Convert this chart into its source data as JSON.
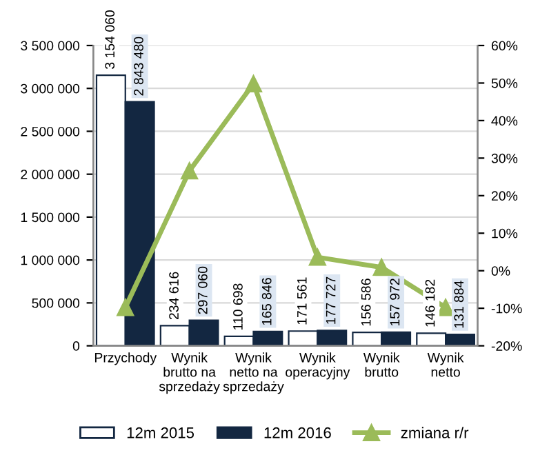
{
  "chart_data": {
    "type": "bar",
    "categories": [
      "Przychody",
      "Wynik\nbrutto na\nsprzedaży",
      "Wynik\nnetto na\nsprzedaży",
      "Wynik\noperacyjny",
      "Wynik\nbrutto",
      "Wynik\nnetto"
    ],
    "series": [
      {
        "name": "12m 2015",
        "color": "#ffffff",
        "values": [
          3154060,
          234616,
          110698,
          171561,
          156586,
          146182
        ],
        "value_labels": [
          "3 154 060",
          "234 616",
          "110 698",
          "171 561",
          "156 586",
          "146 182"
        ]
      },
      {
        "name": "12m 2016",
        "color": "#132741",
        "values": [
          2843480,
          297060,
          165846,
          177727,
          157972,
          131884
        ],
        "value_labels": [
          "2 843 480",
          "297 060",
          "165 846",
          "177 727",
          "157 972",
          "131 884"
        ]
      },
      {
        "name": "zmiana r/r",
        "type": "line",
        "axis": "y2",
        "color": "#9bbb59",
        "marker": "triangle",
        "values": [
          -9.8,
          26.6,
          49.8,
          3.6,
          0.9,
          -9.8
        ]
      }
    ],
    "ylim": [
      0,
      3500000
    ],
    "yticks": [
      0,
      {
        "value": 500000,
        "label": "500 000"
      },
      {
        "value": 1000000,
        "label": "1 000 000"
      },
      {
        "value": 1500000,
        "label": "1 500 000"
      },
      {
        "value": 2000000,
        "label": "2 000 000"
      },
      {
        "value": 2500000,
        "label": "2 500 000"
      },
      {
        "value": 3000000,
        "label": "3 000 000"
      },
      {
        "value": 3500000,
        "label": "3 500 000"
      }
    ],
    "y2lim": [
      -20,
      60
    ],
    "y2ticks": [
      {
        "value": -20,
        "label": "-20%"
      },
      {
        "value": -10,
        "label": "-10%"
      },
      {
        "value": 0,
        "label": "0%"
      },
      {
        "value": 10,
        "label": "10%"
      },
      {
        "value": 20,
        "label": "20%"
      },
      {
        "value": 30,
        "label": "30%"
      },
      {
        "value": 40,
        "label": "40%"
      },
      {
        "value": 50,
        "label": "50%"
      },
      {
        "value": 60,
        "label": "60%"
      }
    ],
    "grid": "y",
    "legend": "bottom"
  }
}
